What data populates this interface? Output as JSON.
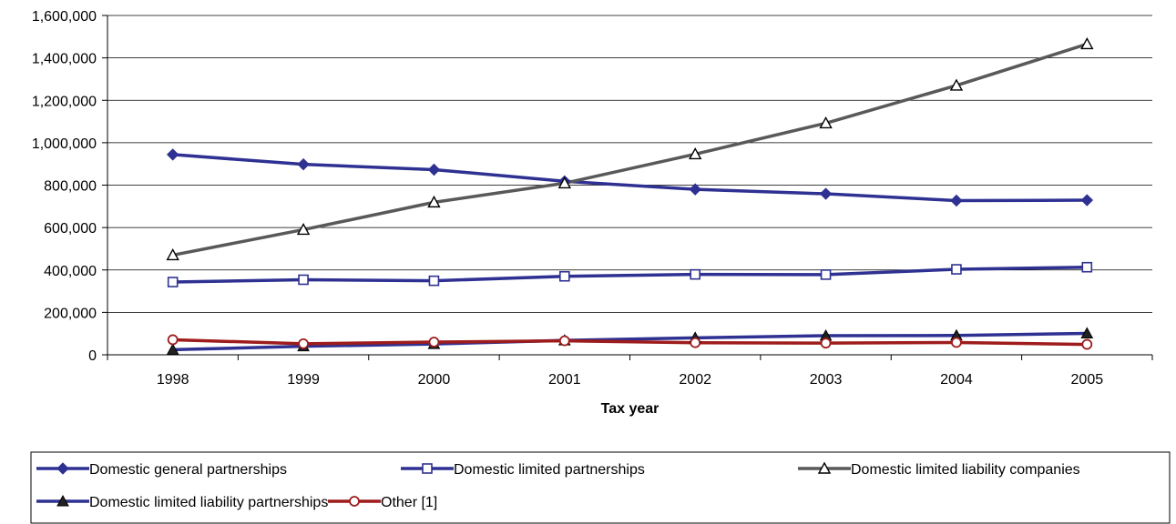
{
  "chart_data": {
    "type": "line",
    "title": "",
    "xlabel": "Tax year",
    "ylabel": "",
    "categories": [
      "1998",
      "1999",
      "2000",
      "2001",
      "2002",
      "2003",
      "2004",
      "2005"
    ],
    "ylim": [
      0,
      1600000
    ],
    "yticks": [
      0,
      200000,
      400000,
      600000,
      800000,
      1000000,
      1200000,
      1400000,
      1600000
    ],
    "ytick_labels": [
      "0",
      "200,000",
      "400,000",
      "600,000",
      "800,000",
      "1,000,000",
      "1,200,000",
      "1,400,000",
      "1,600,000"
    ],
    "grid": "horizontal",
    "legend_position": "bottom",
    "series": [
      {
        "name": "Domestic general partnerships",
        "color": "#2e3192",
        "marker": "diamond",
        "values": [
          944000,
          898000,
          873000,
          818000,
          780000,
          759000,
          727000,
          729000
        ]
      },
      {
        "name": "Domestic limited partnerships",
        "color": "#2e3192",
        "marker": "square-open",
        "values": [
          343000,
          354000,
          349000,
          370000,
          379000,
          378000,
          403000,
          413000
        ]
      },
      {
        "name": "Domestic limited liability companies",
        "color": "#595959",
        "marker": "triangle-open",
        "values": [
          470000,
          590000,
          719000,
          809000,
          946000,
          1092000,
          1270000,
          1465000
        ]
      },
      {
        "name": "Domestic limited liability partnerships",
        "color": "#2e3192",
        "marker": "triangle-filled",
        "values": [
          24000,
          40000,
          51000,
          68000,
          80000,
          90000,
          91000,
          101000
        ]
      },
      {
        "name": "Other [1]",
        "color": "#9e1c1c",
        "marker": "circle-open",
        "values": [
          71000,
          52000,
          60000,
          66000,
          57000,
          55000,
          58000,
          49000
        ]
      }
    ]
  }
}
